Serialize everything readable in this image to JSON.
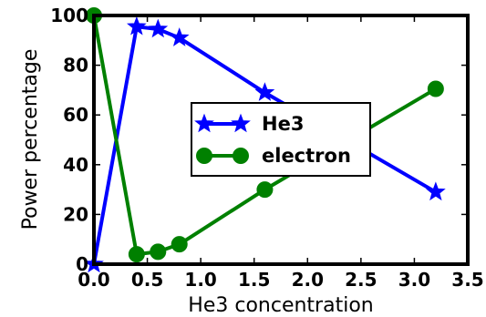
{
  "chart_data": {
    "type": "line",
    "xlabel": "He3 concentration",
    "ylabel": "Power percentage",
    "xlim": [
      0,
      3.5
    ],
    "ylim": [
      0,
      100
    ],
    "xticks": [
      "0.0",
      "0.5",
      "1.0",
      "1.5",
      "2.0",
      "2.5",
      "3.0",
      "3.5"
    ],
    "yticks": [
      "0",
      "20",
      "40",
      "60",
      "80",
      "100"
    ],
    "grid": false,
    "legend_position": "center-right",
    "series": [
      {
        "name": "He3",
        "color": "#0000ff",
        "marker": "star",
        "x": [
          0.0,
          0.4,
          0.6,
          0.8,
          1.6,
          3.2
        ],
        "y": [
          0,
          95.5,
          94.5,
          91,
          69,
          29
        ]
      },
      {
        "name": "electron",
        "color": "#008000",
        "marker": "circle",
        "x": [
          0.0,
          0.4,
          0.6,
          0.8,
          1.6,
          3.2
        ],
        "y": [
          100,
          4,
          5,
          8,
          30,
          70.5
        ]
      }
    ]
  }
}
